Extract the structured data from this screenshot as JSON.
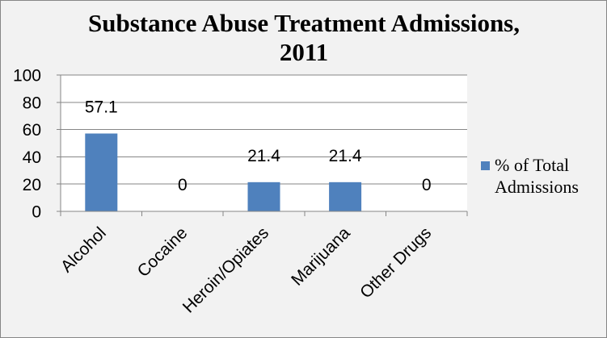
{
  "chart_data": {
    "type": "bar",
    "title": "Substance Abuse Treatment Admissions, 2011",
    "categories": [
      "Alcohol",
      "Cocaine",
      "Heroin/Opiates",
      "Marijuana",
      "Other Drugs"
    ],
    "series": [
      {
        "name": "% of Total Admissions",
        "values": [
          57.1,
          0,
          21.4,
          21.4,
          0
        ]
      }
    ],
    "ylim": [
      0,
      100
    ],
    "yticks": [
      0,
      20,
      40,
      60,
      80,
      100
    ],
    "grid": "horizontal",
    "legend": "right"
  },
  "colors": {
    "background": "#F2F2F2",
    "plot_area": "#FFFFFF",
    "border": "#868686",
    "gridline": "#868686",
    "axis": "#868686",
    "bar": "#4F81BD"
  }
}
